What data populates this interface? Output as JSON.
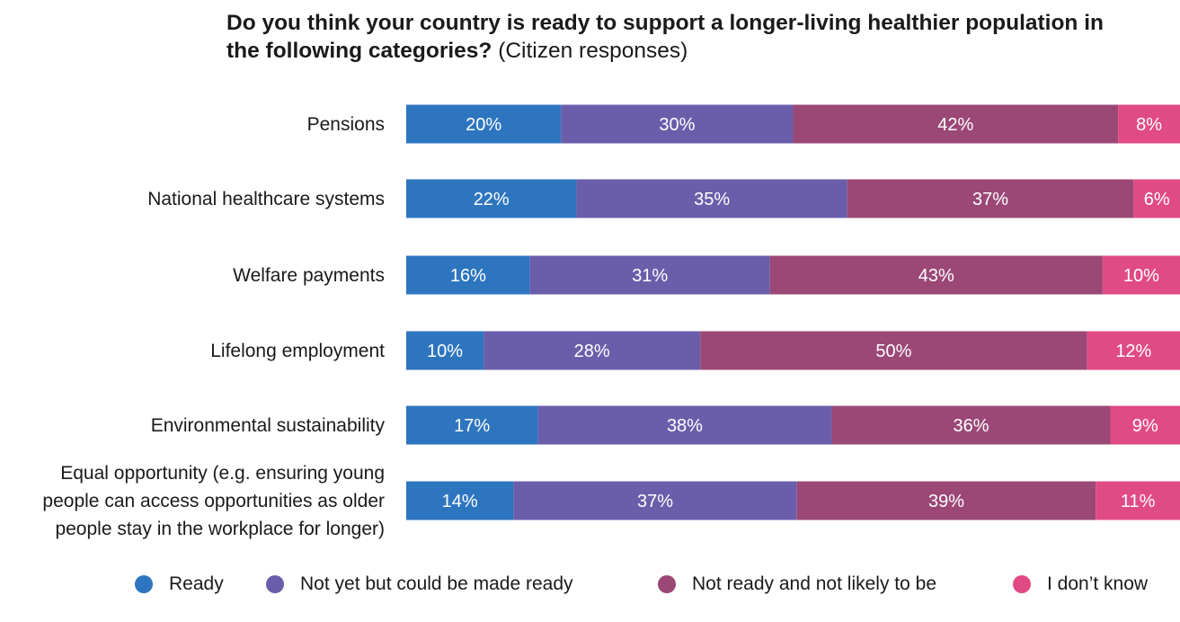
{
  "title": {
    "bold": "Do you think your country is ready to support a longer-living healthier population in the following categories?",
    "normal": "(Citizen responses)"
  },
  "chart_data": {
    "type": "bar",
    "orientation": "horizontal",
    "stacked": true,
    "normalized": true,
    "title": "Do you think your country is ready to support a longer-living healthier population in the following categories? (Citizen responses)",
    "categories": [
      "Pensions",
      "National healthcare systems",
      "Welfare payments",
      "Lifelong employment",
      "Environmental sustainability",
      "Equal opportunity (e.g. ensuring young people can access opportunities as older people stay in the workplace for longer)"
    ],
    "category_lines": [
      [
        "Pensions"
      ],
      [
        "National healthcare systems"
      ],
      [
        "Welfare payments"
      ],
      [
        "Lifelong employment"
      ],
      [
        "Environmental sustainability"
      ],
      [
        "Equal opportunity (e.g. ensuring young",
        "people can access opportunities as older",
        "people stay in the workplace for longer)"
      ]
    ],
    "series": [
      {
        "name": "Ready",
        "color": "#2e75c0",
        "values": [
          20,
          22,
          16,
          10,
          17,
          14
        ]
      },
      {
        "name": "Not yet but could be made ready",
        "color": "#6a5eab",
        "values": [
          30,
          35,
          31,
          28,
          38,
          37
        ]
      },
      {
        "name": "Not ready and not likely to be",
        "color": "#9b4877",
        "values": [
          42,
          37,
          43,
          50,
          36,
          39
        ]
      },
      {
        "name": "I don’t know",
        "color": "#e14b85",
        "values": [
          8,
          6,
          10,
          12,
          9,
          11
        ]
      }
    ],
    "value_suffix": "%",
    "legend": "bottom",
    "grid": false
  }
}
